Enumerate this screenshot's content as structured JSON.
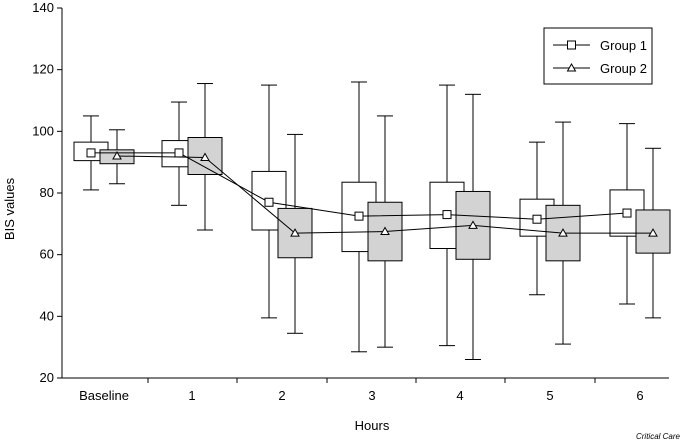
{
  "chart_data": {
    "type": "box",
    "xlabel": "Hours",
    "ylabel": "BIS values",
    "ylim": [
      20,
      140
    ],
    "yticks": [
      20,
      40,
      60,
      80,
      100,
      120,
      140
    ],
    "categories": [
      "Baseline",
      "1",
      "2",
      "3",
      "4",
      "5",
      "6"
    ],
    "grid": false,
    "legend_position": "top-right",
    "series": [
      {
        "name": "Group 1",
        "marker": "square",
        "fill": "#ffffff",
        "boxes": [
          {
            "min": 81,
            "q1": 90.5,
            "median": 93,
            "q3": 96.5,
            "max": 105
          },
          {
            "min": 76,
            "q1": 88.5,
            "median": 93,
            "q3": 97,
            "max": 109.5
          },
          {
            "min": 39.5,
            "q1": 68,
            "median": 77,
            "q3": 87,
            "max": 115
          },
          {
            "min": 28.5,
            "q1": 61,
            "median": 72.5,
            "q3": 83.5,
            "max": 116
          },
          {
            "min": 30.5,
            "q1": 62,
            "median": 73,
            "q3": 83.5,
            "max": 115
          },
          {
            "min": 47,
            "q1": 66,
            "median": 71.5,
            "q3": 78,
            "max": 96.5
          },
          {
            "min": 44,
            "q1": 66,
            "median": 73.5,
            "q3": 81,
            "max": 102.5
          }
        ]
      },
      {
        "name": "Group 2",
        "marker": "triangle",
        "fill": "#d3d3d3",
        "boxes": [
          {
            "min": 83,
            "q1": 89.5,
            "median": 92,
            "q3": 94,
            "max": 100.5
          },
          {
            "min": 68,
            "q1": 86,
            "median": 91.5,
            "q3": 98,
            "max": 115.5
          },
          {
            "min": 34.5,
            "q1": 59,
            "median": 67,
            "q3": 75,
            "max": 99
          },
          {
            "min": 30,
            "q1": 58,
            "median": 67.5,
            "q3": 77,
            "max": 105
          },
          {
            "min": 26,
            "q1": 58.5,
            "median": 69.5,
            "q3": 80.5,
            "max": 112
          },
          {
            "min": 31,
            "q1": 58,
            "median": 67,
            "q3": 76,
            "max": 103
          },
          {
            "min": 39.5,
            "q1": 60.5,
            "median": 67,
            "q3": 74.5,
            "max": 94.5
          }
        ]
      }
    ]
  },
  "credit": "Critical Care"
}
